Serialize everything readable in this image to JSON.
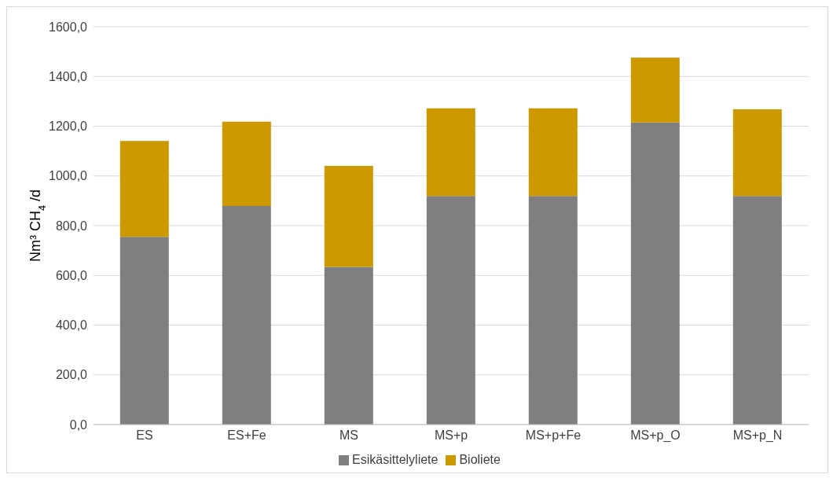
{
  "chart_data": {
    "type": "bar",
    "ylabel": "Nm³ CH$_{4}$ /d",
    "categories": [
      "ES",
      "ES+Fe",
      "MS",
      "MS+p",
      "MS+p+Fe",
      "MS+p_O",
      "MS+p_N"
    ],
    "series": [
      {
        "name": "Esikäsittelyliete",
        "color": "#7f7f7f",
        "values": [
          755,
          879,
          634,
          919,
          919,
          1215,
          919
        ]
      },
      {
        "name": "Bioliete",
        "color": "#cc9a00",
        "values": [
          386,
          339,
          406,
          353,
          353,
          261,
          349
        ]
      }
    ],
    "stacked": true,
    "ylim": [
      0,
      1600
    ],
    "yticks": [
      {
        "value": 0,
        "label": "0,0"
      },
      {
        "value": 200,
        "label": "200,0"
      },
      {
        "value": 400,
        "label": "400,0"
      },
      {
        "value": 600,
        "label": "600,0"
      },
      {
        "value": 800,
        "label": "800,0"
      },
      {
        "value": 1000,
        "label": "1000,0"
      },
      {
        "value": 1200,
        "label": "1200,0"
      },
      {
        "value": 1400,
        "label": "1400,0"
      },
      {
        "value": 1600,
        "label": "1600,0"
      }
    ],
    "grid": "y",
    "legend": "bottom"
  }
}
